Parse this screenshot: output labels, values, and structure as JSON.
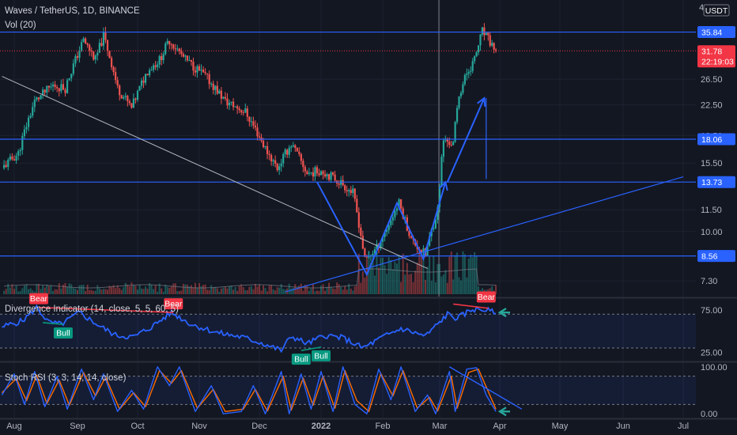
{
  "header": {
    "symbol_line": "Waves / TetherUS, 1D, BINANCE",
    "volume_label": "Vol (20)",
    "currency_label": "USDT",
    "top_scale_value": "4"
  },
  "colors": {
    "background": "#131722",
    "bull_candle": "#26a69a",
    "bear_candle": "#ef5350",
    "level_line": "#2962ff",
    "drawing_line": "#2962ff",
    "trend_line": "#b2b5be",
    "indicator_line": "#2962ff",
    "stoch_k": "#2962ff",
    "stoch_d": "#ff6d00",
    "bear_label": "#f23645",
    "bull_label": "#089981",
    "current_price": "#f23645"
  },
  "chart_data": [
    {
      "type": "candlestick",
      "title": "Waves / TetherUS, 1D, BINANCE",
      "y_scale": "log",
      "ylim": [
        6.6,
        44
      ],
      "y_ticks": [
        7.3,
        10.0,
        11.5,
        15.5,
        18.5,
        22.5,
        26.5,
        35.84
      ],
      "x_axis_labels": [
        "Aug",
        "Sep",
        "Oct",
        "Nov",
        "Dec",
        "2022",
        "Feb",
        "Mar",
        "Apr",
        "May",
        "Jun",
        "Jul"
      ],
      "price_path": [
        {
          "date": "2021-07-26",
          "price": 15.0
        },
        {
          "date": "2021-08-03",
          "price": 16.5
        },
        {
          "date": "2021-08-11",
          "price": 23.0
        },
        {
          "date": "2021-08-20",
          "price": 25.5
        },
        {
          "date": "2021-08-26",
          "price": 25.0
        },
        {
          "date": "2021-09-04",
          "price": 34.0
        },
        {
          "date": "2021-09-10",
          "price": 30.0
        },
        {
          "date": "2021-09-14",
          "price": 35.0
        },
        {
          "date": "2021-09-21",
          "price": 25.0
        },
        {
          "date": "2021-09-28",
          "price": 22.0
        },
        {
          "date": "2021-10-06",
          "price": 28.0
        },
        {
          "date": "2021-10-12",
          "price": 30.0
        },
        {
          "date": "2021-10-17",
          "price": 34.0
        },
        {
          "date": "2021-10-25",
          "price": 30.0
        },
        {
          "date": "2021-11-04",
          "price": 27.0
        },
        {
          "date": "2021-11-14",
          "price": 23.0
        },
        {
          "date": "2021-11-24",
          "price": 21.5
        },
        {
          "date": "2021-12-04",
          "price": 17.0
        },
        {
          "date": "2021-12-10",
          "price": 15.0
        },
        {
          "date": "2021-12-17",
          "price": 17.5
        },
        {
          "date": "2021-12-25",
          "price": 14.5
        },
        {
          "date": "2022-01-01",
          "price": 14.8
        },
        {
          "date": "2022-01-10",
          "price": 13.8
        },
        {
          "date": "2022-01-17",
          "price": 12.8
        },
        {
          "date": "2022-01-23",
          "price": 8.3
        },
        {
          "date": "2022-01-29",
          "price": 9.0
        },
        {
          "date": "2022-02-03",
          "price": 10.2
        },
        {
          "date": "2022-02-09",
          "price": 12.0
        },
        {
          "date": "2022-02-15",
          "price": 9.5
        },
        {
          "date": "2022-02-22",
          "price": 8.6
        },
        {
          "date": "2022-02-28",
          "price": 11.5
        },
        {
          "date": "2022-03-03",
          "price": 18.0
        },
        {
          "date": "2022-03-08",
          "price": 17.5
        },
        {
          "date": "2022-03-11",
          "price": 24.0
        },
        {
          "date": "2022-03-15",
          "price": 27.5
        },
        {
          "date": "2022-03-19",
          "price": 30.0
        },
        {
          "date": "2022-03-23",
          "price": 36.0
        },
        {
          "date": "2022-03-27",
          "price": 33.5
        },
        {
          "date": "2022-03-30",
          "price": 31.78
        }
      ],
      "horizontal_levels": [
        {
          "price": 35.84,
          "label": "35.84"
        },
        {
          "price": 18.06,
          "label": "18.06"
        },
        {
          "price": 13.73,
          "label": "13.73"
        },
        {
          "price": 8.56,
          "label": "8.56"
        }
      ],
      "current_price": {
        "label": "31.78",
        "countdown": "22:19:03",
        "price": 31.78
      },
      "drawings": {
        "w_pattern": [
          {
            "date": "2021-12-30",
            "price": 13.73
          },
          {
            "date": "2022-01-24",
            "price": 7.6
          },
          {
            "date": "2022-02-08",
            "price": 12.0
          },
          {
            "date": "2022-02-21",
            "price": 8.4
          },
          {
            "date": "2022-03-04",
            "price": 13.73
          }
        ],
        "projection_arrow": [
          {
            "date": "2022-03-05",
            "price": 13.73
          },
          {
            "date": "2022-03-24",
            "price": 23.5
          }
        ],
        "measure_line": [
          {
            "date": "2022-03-25",
            "price": 23.5
          },
          {
            "date": "2022-03-25",
            "price": 14.0
          }
        ],
        "rising_trendline": [
          {
            "date": "2021-12-14",
            "price": 6.8
          },
          {
            "date": "2022-07-01",
            "price": 14.2
          }
        ],
        "descending_trendline": [
          {
            "date": "2021-07-26",
            "price": 27.0
          },
          {
            "date": "2022-02-23",
            "price": 7.9
          }
        ]
      }
    },
    {
      "type": "line",
      "title": "Divergence Indicator (14, close, 5, 5, 60, 5)",
      "ylim": [
        15,
        88
      ],
      "y_ticks": [
        25.0,
        75.0
      ],
      "bands": [
        30,
        70
      ],
      "series": [
        {
          "values": [
            {
              "date": "2021-07-26",
              "value": 55
            },
            {
              "date": "2021-08-05",
              "value": 62
            },
            {
              "date": "2021-08-12",
              "value": 78
            },
            {
              "date": "2021-08-18",
              "value": 60
            },
            {
              "date": "2021-08-24",
              "value": 58
            },
            {
              "date": "2021-09-02",
              "value": 72
            },
            {
              "date": "2021-09-12",
              "value": 56
            },
            {
              "date": "2021-09-20",
              "value": 45
            },
            {
              "date": "2021-09-29",
              "value": 43
            },
            {
              "date": "2021-10-08",
              "value": 55
            },
            {
              "date": "2021-10-18",
              "value": 72
            },
            {
              "date": "2021-10-28",
              "value": 58
            },
            {
              "date": "2021-11-10",
              "value": 48
            },
            {
              "date": "2021-11-22",
              "value": 43
            },
            {
              "date": "2021-12-02",
              "value": 36
            },
            {
              "date": "2021-12-12",
              "value": 27
            },
            {
              "date": "2021-12-17",
              "value": 44
            },
            {
              "date": "2021-12-25",
              "value": 35
            },
            {
              "date": "2022-01-03",
              "value": 45
            },
            {
              "date": "2022-01-12",
              "value": 42
            },
            {
              "date": "2022-01-22",
              "value": 30
            },
            {
              "date": "2022-02-02",
              "value": 44
            },
            {
              "date": "2022-02-10",
              "value": 53
            },
            {
              "date": "2022-02-22",
              "value": 44
            },
            {
              "date": "2022-03-05",
              "value": 70
            },
            {
              "date": "2022-03-10",
              "value": 65
            },
            {
              "date": "2022-03-18",
              "value": 76
            },
            {
              "date": "2022-03-25",
              "value": 75
            },
            {
              "date": "2022-03-30",
              "value": 71
            }
          ]
        }
      ],
      "labels": [
        {
          "text": "Bear",
          "kind": "bear",
          "date": "2021-08-13",
          "value": 78
        },
        {
          "text": "Bear",
          "kind": "bear",
          "date": "2021-10-19",
          "value": 72
        },
        {
          "text": "Bull",
          "kind": "bull",
          "date": "2021-08-25",
          "value": 58
        },
        {
          "text": "Bull",
          "kind": "bull",
          "date": "2021-12-22",
          "value": 27
        },
        {
          "text": "Bull",
          "kind": "bull",
          "date": "2022-01-01",
          "value": 31
        },
        {
          "text": "Bear",
          "kind": "bear",
          "date": "2022-03-25",
          "value": 80
        }
      ]
    },
    {
      "type": "line",
      "title": "Stoch RSI (3, 3, 14, 14, close)",
      "ylim": [
        -8,
        108
      ],
      "y_ticks": [
        0.0,
        100.0
      ],
      "bands": [
        20,
        80
      ],
      "series": [
        {
          "values": [
            {
              "date": "2021-07-26",
              "value": 40
            },
            {
              "date": "2021-08-01",
              "value": 85
            },
            {
              "date": "2021-08-06",
              "value": 20
            },
            {
              "date": "2021-08-11",
              "value": 90
            },
            {
              "date": "2021-08-16",
              "value": 15
            },
            {
              "date": "2021-08-22",
              "value": 80
            },
            {
              "date": "2021-08-27",
              "value": 10
            },
            {
              "date": "2021-09-03",
              "value": 95
            },
            {
              "date": "2021-09-09",
              "value": 30
            },
            {
              "date": "2021-09-14",
              "value": 85
            },
            {
              "date": "2021-09-21",
              "value": 5
            },
            {
              "date": "2021-09-28",
              "value": 50
            },
            {
              "date": "2021-10-04",
              "value": 10
            },
            {
              "date": "2021-10-11",
              "value": 100
            },
            {
              "date": "2021-10-17",
              "value": 60
            },
            {
              "date": "2021-10-22",
              "value": 100
            },
            {
              "date": "2021-10-30",
              "value": 5
            },
            {
              "date": "2021-11-07",
              "value": 60
            },
            {
              "date": "2021-11-13",
              "value": 0
            },
            {
              "date": "2021-11-22",
              "value": 5
            },
            {
              "date": "2021-11-28",
              "value": 60
            },
            {
              "date": "2021-12-04",
              "value": 0
            },
            {
              "date": "2021-12-12",
              "value": 90
            },
            {
              "date": "2021-12-16",
              "value": 0
            },
            {
              "date": "2021-12-22",
              "value": 85
            },
            {
              "date": "2021-12-27",
              "value": 10
            },
            {
              "date": "2022-01-01",
              "value": 90
            },
            {
              "date": "2022-01-07",
              "value": 5
            },
            {
              "date": "2022-01-12",
              "value": 100
            },
            {
              "date": "2022-01-18",
              "value": 20
            },
            {
              "date": "2022-01-24",
              "value": 0
            },
            {
              "date": "2022-01-30",
              "value": 95
            },
            {
              "date": "2022-02-05",
              "value": 30
            },
            {
              "date": "2022-02-10",
              "value": 100
            },
            {
              "date": "2022-02-17",
              "value": 5
            },
            {
              "date": "2022-02-23",
              "value": 40
            },
            {
              "date": "2022-02-27",
              "value": 0
            },
            {
              "date": "2022-03-06",
              "value": 90
            },
            {
              "date": "2022-03-09",
              "value": 5
            },
            {
              "date": "2022-03-15",
              "value": 95
            },
            {
              "date": "2022-03-20",
              "value": 98
            },
            {
              "date": "2022-03-25",
              "value": 40
            },
            {
              "date": "2022-03-30",
              "value": 5
            }
          ]
        },
        {
          "values": [
            {
              "date": "2021-07-26",
              "value": 45
            },
            {
              "date": "2021-08-02",
              "value": 75
            },
            {
              "date": "2021-08-07",
              "value": 28
            },
            {
              "date": "2021-08-12",
              "value": 82
            },
            {
              "date": "2021-08-17",
              "value": 22
            },
            {
              "date": "2021-08-23",
              "value": 72
            },
            {
              "date": "2021-08-28",
              "value": 18
            },
            {
              "date": "2021-09-04",
              "value": 88
            },
            {
              "date": "2021-09-10",
              "value": 38
            },
            {
              "date": "2021-09-15",
              "value": 78
            },
            {
              "date": "2021-09-22",
              "value": 10
            },
            {
              "date": "2021-09-29",
              "value": 45
            },
            {
              "date": "2021-10-05",
              "value": 15
            },
            {
              "date": "2021-10-12",
              "value": 92
            },
            {
              "date": "2021-10-18",
              "value": 65
            },
            {
              "date": "2021-10-23",
              "value": 92
            },
            {
              "date": "2021-10-31",
              "value": 12
            },
            {
              "date": "2021-11-08",
              "value": 52
            },
            {
              "date": "2021-11-14",
              "value": 5
            },
            {
              "date": "2021-11-23",
              "value": 10
            },
            {
              "date": "2021-11-29",
              "value": 52
            },
            {
              "date": "2021-12-05",
              "value": 6
            },
            {
              "date": "2021-12-13",
              "value": 80
            },
            {
              "date": "2021-12-17",
              "value": 8
            },
            {
              "date": "2021-12-23",
              "value": 76
            },
            {
              "date": "2021-12-28",
              "value": 18
            },
            {
              "date": "2022-01-02",
              "value": 80
            },
            {
              "date": "2022-01-08",
              "value": 12
            },
            {
              "date": "2022-01-13",
              "value": 92
            },
            {
              "date": "2022-01-19",
              "value": 28
            },
            {
              "date": "2022-01-25",
              "value": 5
            },
            {
              "date": "2022-01-31",
              "value": 86
            },
            {
              "date": "2022-02-06",
              "value": 38
            },
            {
              "date": "2022-02-11",
              "value": 92
            },
            {
              "date": "2022-02-18",
              "value": 12
            },
            {
              "date": "2022-02-24",
              "value": 35
            },
            {
              "date": "2022-02-28",
              "value": 6
            },
            {
              "date": "2022-03-07",
              "value": 80
            },
            {
              "date": "2022-03-10",
              "value": 12
            },
            {
              "date": "2022-03-16",
              "value": 88
            },
            {
              "date": "2022-03-21",
              "value": 95
            },
            {
              "date": "2022-03-26",
              "value": 48
            },
            {
              "date": "2022-03-30",
              "value": 10
            }
          ]
        }
      ],
      "trendline": [
        {
          "date": "2022-03-06",
          "value": 100
        },
        {
          "date": "2022-04-12",
          "value": 10
        }
      ]
    }
  ]
}
